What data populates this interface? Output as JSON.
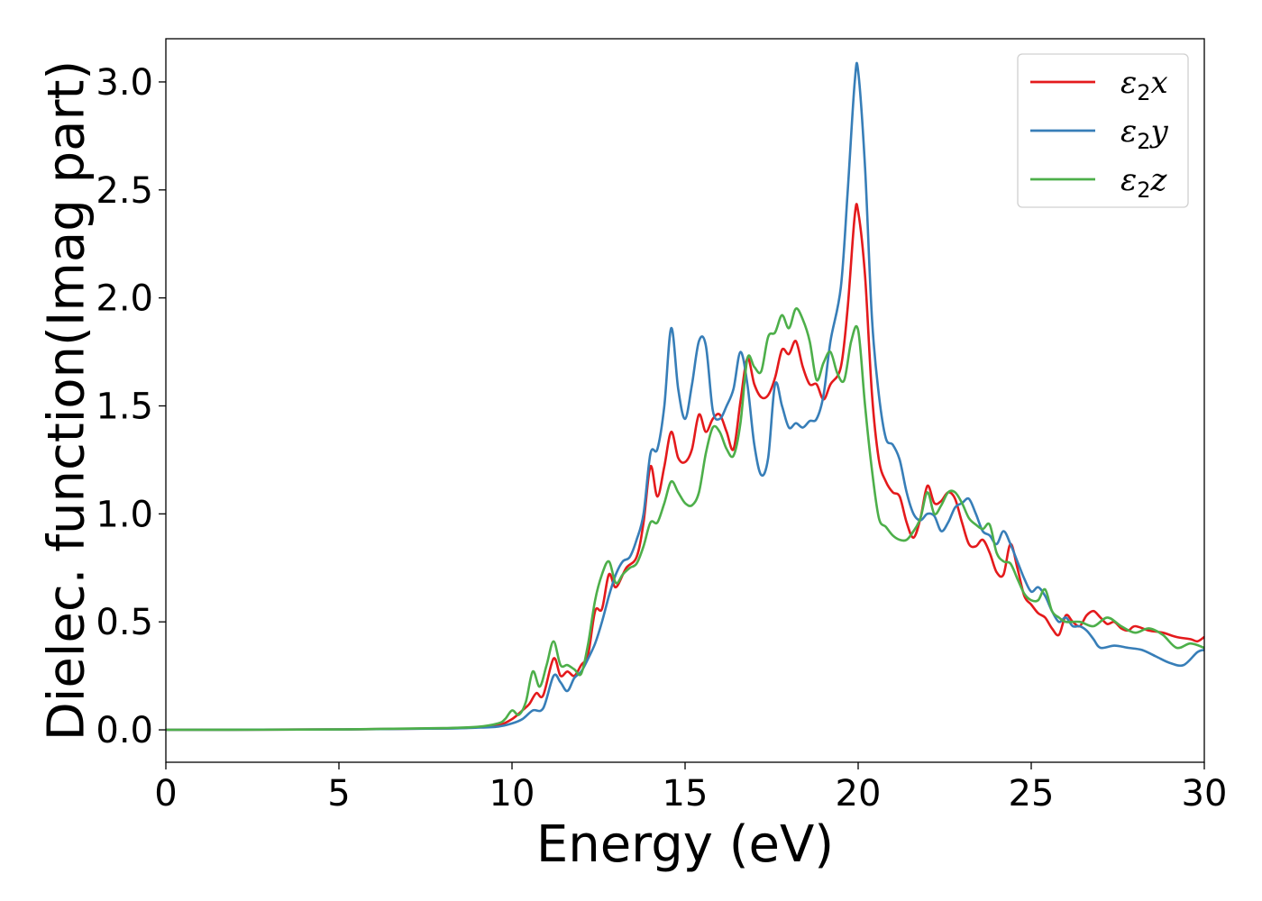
{
  "chart_data": {
    "type": "line",
    "title": "",
    "xlabel": "Energy (eV)",
    "ylabel": "Dielec. function(Imag part)",
    "xlim": [
      0,
      30
    ],
    "ylim": [
      -0.15,
      3.2
    ],
    "xticks": [
      0,
      5,
      10,
      15,
      20,
      25,
      30
    ],
    "xtick_labels": [
      "0",
      "5",
      "10",
      "15",
      "20",
      "25",
      "30"
    ],
    "yticks": [
      0.0,
      0.5,
      1.0,
      1.5,
      2.0,
      2.5,
      3.0
    ],
    "ytick_labels": [
      "0.0",
      "0.5",
      "1.0",
      "1.5",
      "2.0",
      "2.5",
      "3.0"
    ],
    "grid": false,
    "legend_position": "top-right",
    "series": [
      {
        "name": "ε2x",
        "legend_base": "ε",
        "legend_sub": "2",
        "legend_suffix": "x",
        "color": "#e41a1c",
        "points": [
          [
            0,
            0
          ],
          [
            5,
            0.002
          ],
          [
            8,
            0.007
          ],
          [
            9,
            0.012
          ],
          [
            9.6,
            0.02
          ],
          [
            10,
            0.05
          ],
          [
            10.3,
            0.09
          ],
          [
            10.5,
            0.12
          ],
          [
            10.7,
            0.17
          ],
          [
            10.9,
            0.16
          ],
          [
            11.2,
            0.33
          ],
          [
            11.4,
            0.25
          ],
          [
            11.6,
            0.27
          ],
          [
            11.8,
            0.25
          ],
          [
            12.0,
            0.3
          ],
          [
            12.2,
            0.35
          ],
          [
            12.4,
            0.55
          ],
          [
            12.6,
            0.56
          ],
          [
            12.8,
            0.72
          ],
          [
            13.0,
            0.66
          ],
          [
            13.3,
            0.75
          ],
          [
            13.6,
            0.8
          ],
          [
            13.8,
            0.96
          ],
          [
            14.0,
            1.22
          ],
          [
            14.2,
            1.08
          ],
          [
            14.4,
            1.22
          ],
          [
            14.6,
            1.38
          ],
          [
            14.8,
            1.26
          ],
          [
            15.0,
            1.24
          ],
          [
            15.2,
            1.3
          ],
          [
            15.4,
            1.46
          ],
          [
            15.6,
            1.38
          ],
          [
            15.8,
            1.44
          ],
          [
            16.0,
            1.46
          ],
          [
            16.2,
            1.38
          ],
          [
            16.4,
            1.3
          ],
          [
            16.6,
            1.52
          ],
          [
            16.8,
            1.72
          ],
          [
            17.0,
            1.6
          ],
          [
            17.2,
            1.54
          ],
          [
            17.4,
            1.55
          ],
          [
            17.6,
            1.63
          ],
          [
            17.8,
            1.76
          ],
          [
            18.0,
            1.74
          ],
          [
            18.2,
            1.8
          ],
          [
            18.4,
            1.68
          ],
          [
            18.6,
            1.6
          ],
          [
            18.8,
            1.6
          ],
          [
            19.0,
            1.53
          ],
          [
            19.2,
            1.6
          ],
          [
            19.5,
            1.68
          ],
          [
            19.7,
            1.96
          ],
          [
            19.9,
            2.38
          ],
          [
            20.0,
            2.4
          ],
          [
            20.2,
            2.1
          ],
          [
            20.4,
            1.55
          ],
          [
            20.6,
            1.25
          ],
          [
            20.8,
            1.15
          ],
          [
            21.0,
            1.1
          ],
          [
            21.2,
            1.08
          ],
          [
            21.4,
            0.96
          ],
          [
            21.6,
            0.89
          ],
          [
            21.8,
            0.98
          ],
          [
            22.0,
            1.13
          ],
          [
            22.2,
            1.05
          ],
          [
            22.4,
            1.06
          ],
          [
            22.6,
            1.1
          ],
          [
            22.8,
            1.07
          ],
          [
            23.0,
            0.96
          ],
          [
            23.2,
            0.86
          ],
          [
            23.4,
            0.85
          ],
          [
            23.6,
            0.88
          ],
          [
            23.8,
            0.82
          ],
          [
            24.0,
            0.73
          ],
          [
            24.2,
            0.72
          ],
          [
            24.4,
            0.86
          ],
          [
            24.6,
            0.75
          ],
          [
            24.8,
            0.62
          ],
          [
            25.0,
            0.58
          ],
          [
            25.2,
            0.54
          ],
          [
            25.4,
            0.52
          ],
          [
            25.6,
            0.47
          ],
          [
            25.8,
            0.44
          ],
          [
            26.0,
            0.53
          ],
          [
            26.2,
            0.5
          ],
          [
            26.4,
            0.48
          ],
          [
            26.6,
            0.53
          ],
          [
            26.8,
            0.55
          ],
          [
            27.0,
            0.52
          ],
          [
            27.2,
            0.49
          ],
          [
            27.4,
            0.5
          ],
          [
            27.6,
            0.47
          ],
          [
            27.8,
            0.46
          ],
          [
            28.0,
            0.48
          ],
          [
            28.4,
            0.46
          ],
          [
            28.8,
            0.45
          ],
          [
            29.2,
            0.43
          ],
          [
            29.6,
            0.42
          ],
          [
            29.8,
            0.41
          ],
          [
            30.0,
            0.43
          ]
        ]
      },
      {
        "name": "ε2y",
        "legend_base": "ε",
        "legend_sub": "2",
        "legend_suffix": "y",
        "color": "#377eb8",
        "points": [
          [
            0,
            0
          ],
          [
            5,
            0.002
          ],
          [
            8,
            0.006
          ],
          [
            9,
            0.01
          ],
          [
            9.6,
            0.015
          ],
          [
            10,
            0.03
          ],
          [
            10.3,
            0.05
          ],
          [
            10.6,
            0.09
          ],
          [
            10.9,
            0.1
          ],
          [
            11.2,
            0.25
          ],
          [
            11.4,
            0.22
          ],
          [
            11.6,
            0.18
          ],
          [
            11.8,
            0.24
          ],
          [
            12.0,
            0.27
          ],
          [
            12.2,
            0.33
          ],
          [
            12.4,
            0.4
          ],
          [
            12.6,
            0.5
          ],
          [
            12.8,
            0.62
          ],
          [
            13.0,
            0.72
          ],
          [
            13.2,
            0.78
          ],
          [
            13.4,
            0.8
          ],
          [
            13.6,
            0.88
          ],
          [
            13.8,
            1.0
          ],
          [
            14.0,
            1.28
          ],
          [
            14.2,
            1.3
          ],
          [
            14.4,
            1.5
          ],
          [
            14.6,
            1.86
          ],
          [
            14.8,
            1.58
          ],
          [
            15.0,
            1.44
          ],
          [
            15.2,
            1.6
          ],
          [
            15.4,
            1.8
          ],
          [
            15.6,
            1.78
          ],
          [
            15.8,
            1.48
          ],
          [
            16.0,
            1.44
          ],
          [
            16.2,
            1.5
          ],
          [
            16.4,
            1.58
          ],
          [
            16.6,
            1.75
          ],
          [
            16.8,
            1.6
          ],
          [
            17.0,
            1.32
          ],
          [
            17.2,
            1.18
          ],
          [
            17.4,
            1.26
          ],
          [
            17.6,
            1.6
          ],
          [
            17.8,
            1.5
          ],
          [
            18.0,
            1.4
          ],
          [
            18.2,
            1.42
          ],
          [
            18.4,
            1.4
          ],
          [
            18.6,
            1.43
          ],
          [
            18.8,
            1.44
          ],
          [
            19.0,
            1.55
          ],
          [
            19.2,
            1.8
          ],
          [
            19.5,
            2.05
          ],
          [
            19.7,
            2.5
          ],
          [
            19.9,
            3.0
          ],
          [
            20.0,
            3.05
          ],
          [
            20.2,
            2.6
          ],
          [
            20.4,
            1.9
          ],
          [
            20.6,
            1.55
          ],
          [
            20.8,
            1.35
          ],
          [
            21.0,
            1.32
          ],
          [
            21.2,
            1.25
          ],
          [
            21.4,
            1.1
          ],
          [
            21.6,
            1.0
          ],
          [
            21.8,
            0.97
          ],
          [
            22.0,
            1.0
          ],
          [
            22.2,
            0.99
          ],
          [
            22.4,
            0.92
          ],
          [
            22.6,
            0.96
          ],
          [
            22.8,
            1.03
          ],
          [
            23.0,
            1.05
          ],
          [
            23.2,
            1.07
          ],
          [
            23.4,
            1.0
          ],
          [
            23.6,
            0.92
          ],
          [
            23.8,
            0.9
          ],
          [
            24.0,
            0.86
          ],
          [
            24.2,
            0.92
          ],
          [
            24.4,
            0.86
          ],
          [
            24.6,
            0.78
          ],
          [
            24.8,
            0.7
          ],
          [
            25.0,
            0.64
          ],
          [
            25.2,
            0.66
          ],
          [
            25.4,
            0.62
          ],
          [
            25.6,
            0.55
          ],
          [
            25.8,
            0.5
          ],
          [
            26.0,
            0.52
          ],
          [
            26.2,
            0.48
          ],
          [
            26.4,
            0.48
          ],
          [
            26.6,
            0.46
          ],
          [
            26.8,
            0.42
          ],
          [
            27.0,
            0.38
          ],
          [
            27.4,
            0.39
          ],
          [
            27.8,
            0.38
          ],
          [
            28.2,
            0.37
          ],
          [
            28.6,
            0.34
          ],
          [
            29.0,
            0.31
          ],
          [
            29.4,
            0.3
          ],
          [
            29.8,
            0.36
          ],
          [
            30.0,
            0.37
          ]
        ]
      },
      {
        "name": "ε2z",
        "legend_base": "ε",
        "legend_sub": "2",
        "legend_suffix": "z",
        "color": "#4daf4a",
        "points": [
          [
            0,
            0
          ],
          [
            5,
            0.002
          ],
          [
            8,
            0.008
          ],
          [
            9,
            0.014
          ],
          [
            9.6,
            0.03
          ],
          [
            9.8,
            0.05
          ],
          [
            10.0,
            0.09
          ],
          [
            10.2,
            0.07
          ],
          [
            10.4,
            0.13
          ],
          [
            10.6,
            0.27
          ],
          [
            10.8,
            0.2
          ],
          [
            11.0,
            0.3
          ],
          [
            11.2,
            0.41
          ],
          [
            11.4,
            0.3
          ],
          [
            11.6,
            0.3
          ],
          [
            11.8,
            0.28
          ],
          [
            12.0,
            0.26
          ],
          [
            12.2,
            0.4
          ],
          [
            12.4,
            0.6
          ],
          [
            12.6,
            0.72
          ],
          [
            12.8,
            0.78
          ],
          [
            13.0,
            0.68
          ],
          [
            13.2,
            0.72
          ],
          [
            13.4,
            0.75
          ],
          [
            13.6,
            0.77
          ],
          [
            13.8,
            0.85
          ],
          [
            14.0,
            0.96
          ],
          [
            14.2,
            0.96
          ],
          [
            14.4,
            1.05
          ],
          [
            14.6,
            1.15
          ],
          [
            14.8,
            1.1
          ],
          [
            15.0,
            1.05
          ],
          [
            15.2,
            1.04
          ],
          [
            15.4,
            1.1
          ],
          [
            15.6,
            1.28
          ],
          [
            15.8,
            1.4
          ],
          [
            16.0,
            1.38
          ],
          [
            16.2,
            1.3
          ],
          [
            16.4,
            1.27
          ],
          [
            16.6,
            1.42
          ],
          [
            16.8,
            1.72
          ],
          [
            17.0,
            1.68
          ],
          [
            17.2,
            1.66
          ],
          [
            17.4,
            1.82
          ],
          [
            17.6,
            1.84
          ],
          [
            17.8,
            1.92
          ],
          [
            18.0,
            1.86
          ],
          [
            18.2,
            1.95
          ],
          [
            18.4,
            1.9
          ],
          [
            18.6,
            1.8
          ],
          [
            18.8,
            1.62
          ],
          [
            19.0,
            1.7
          ],
          [
            19.2,
            1.75
          ],
          [
            19.4,
            1.65
          ],
          [
            19.6,
            1.62
          ],
          [
            19.8,
            1.8
          ],
          [
            20.0,
            1.85
          ],
          [
            20.2,
            1.5
          ],
          [
            20.4,
            1.2
          ],
          [
            20.6,
            0.98
          ],
          [
            20.8,
            0.94
          ],
          [
            21.0,
            0.9
          ],
          [
            21.2,
            0.88
          ],
          [
            21.4,
            0.88
          ],
          [
            21.6,
            0.92
          ],
          [
            21.8,
            0.98
          ],
          [
            22.0,
            1.1
          ],
          [
            22.2,
            1.0
          ],
          [
            22.4,
            1.04
          ],
          [
            22.6,
            1.1
          ],
          [
            22.8,
            1.1
          ],
          [
            23.0,
            1.05
          ],
          [
            23.2,
            0.98
          ],
          [
            23.4,
            0.95
          ],
          [
            23.6,
            0.93
          ],
          [
            23.8,
            0.95
          ],
          [
            24.0,
            0.82
          ],
          [
            24.2,
            0.78
          ],
          [
            24.4,
            0.77
          ],
          [
            24.6,
            0.7
          ],
          [
            24.8,
            0.63
          ],
          [
            25.0,
            0.6
          ],
          [
            25.2,
            0.6
          ],
          [
            25.4,
            0.65
          ],
          [
            25.6,
            0.55
          ],
          [
            25.8,
            0.52
          ],
          [
            26.0,
            0.5
          ],
          [
            26.4,
            0.5
          ],
          [
            26.8,
            0.48
          ],
          [
            27.2,
            0.52
          ],
          [
            27.6,
            0.48
          ],
          [
            28.0,
            0.45
          ],
          [
            28.4,
            0.47
          ],
          [
            28.8,
            0.44
          ],
          [
            29.2,
            0.38
          ],
          [
            29.6,
            0.4
          ],
          [
            30.0,
            0.38
          ]
        ]
      }
    ]
  }
}
